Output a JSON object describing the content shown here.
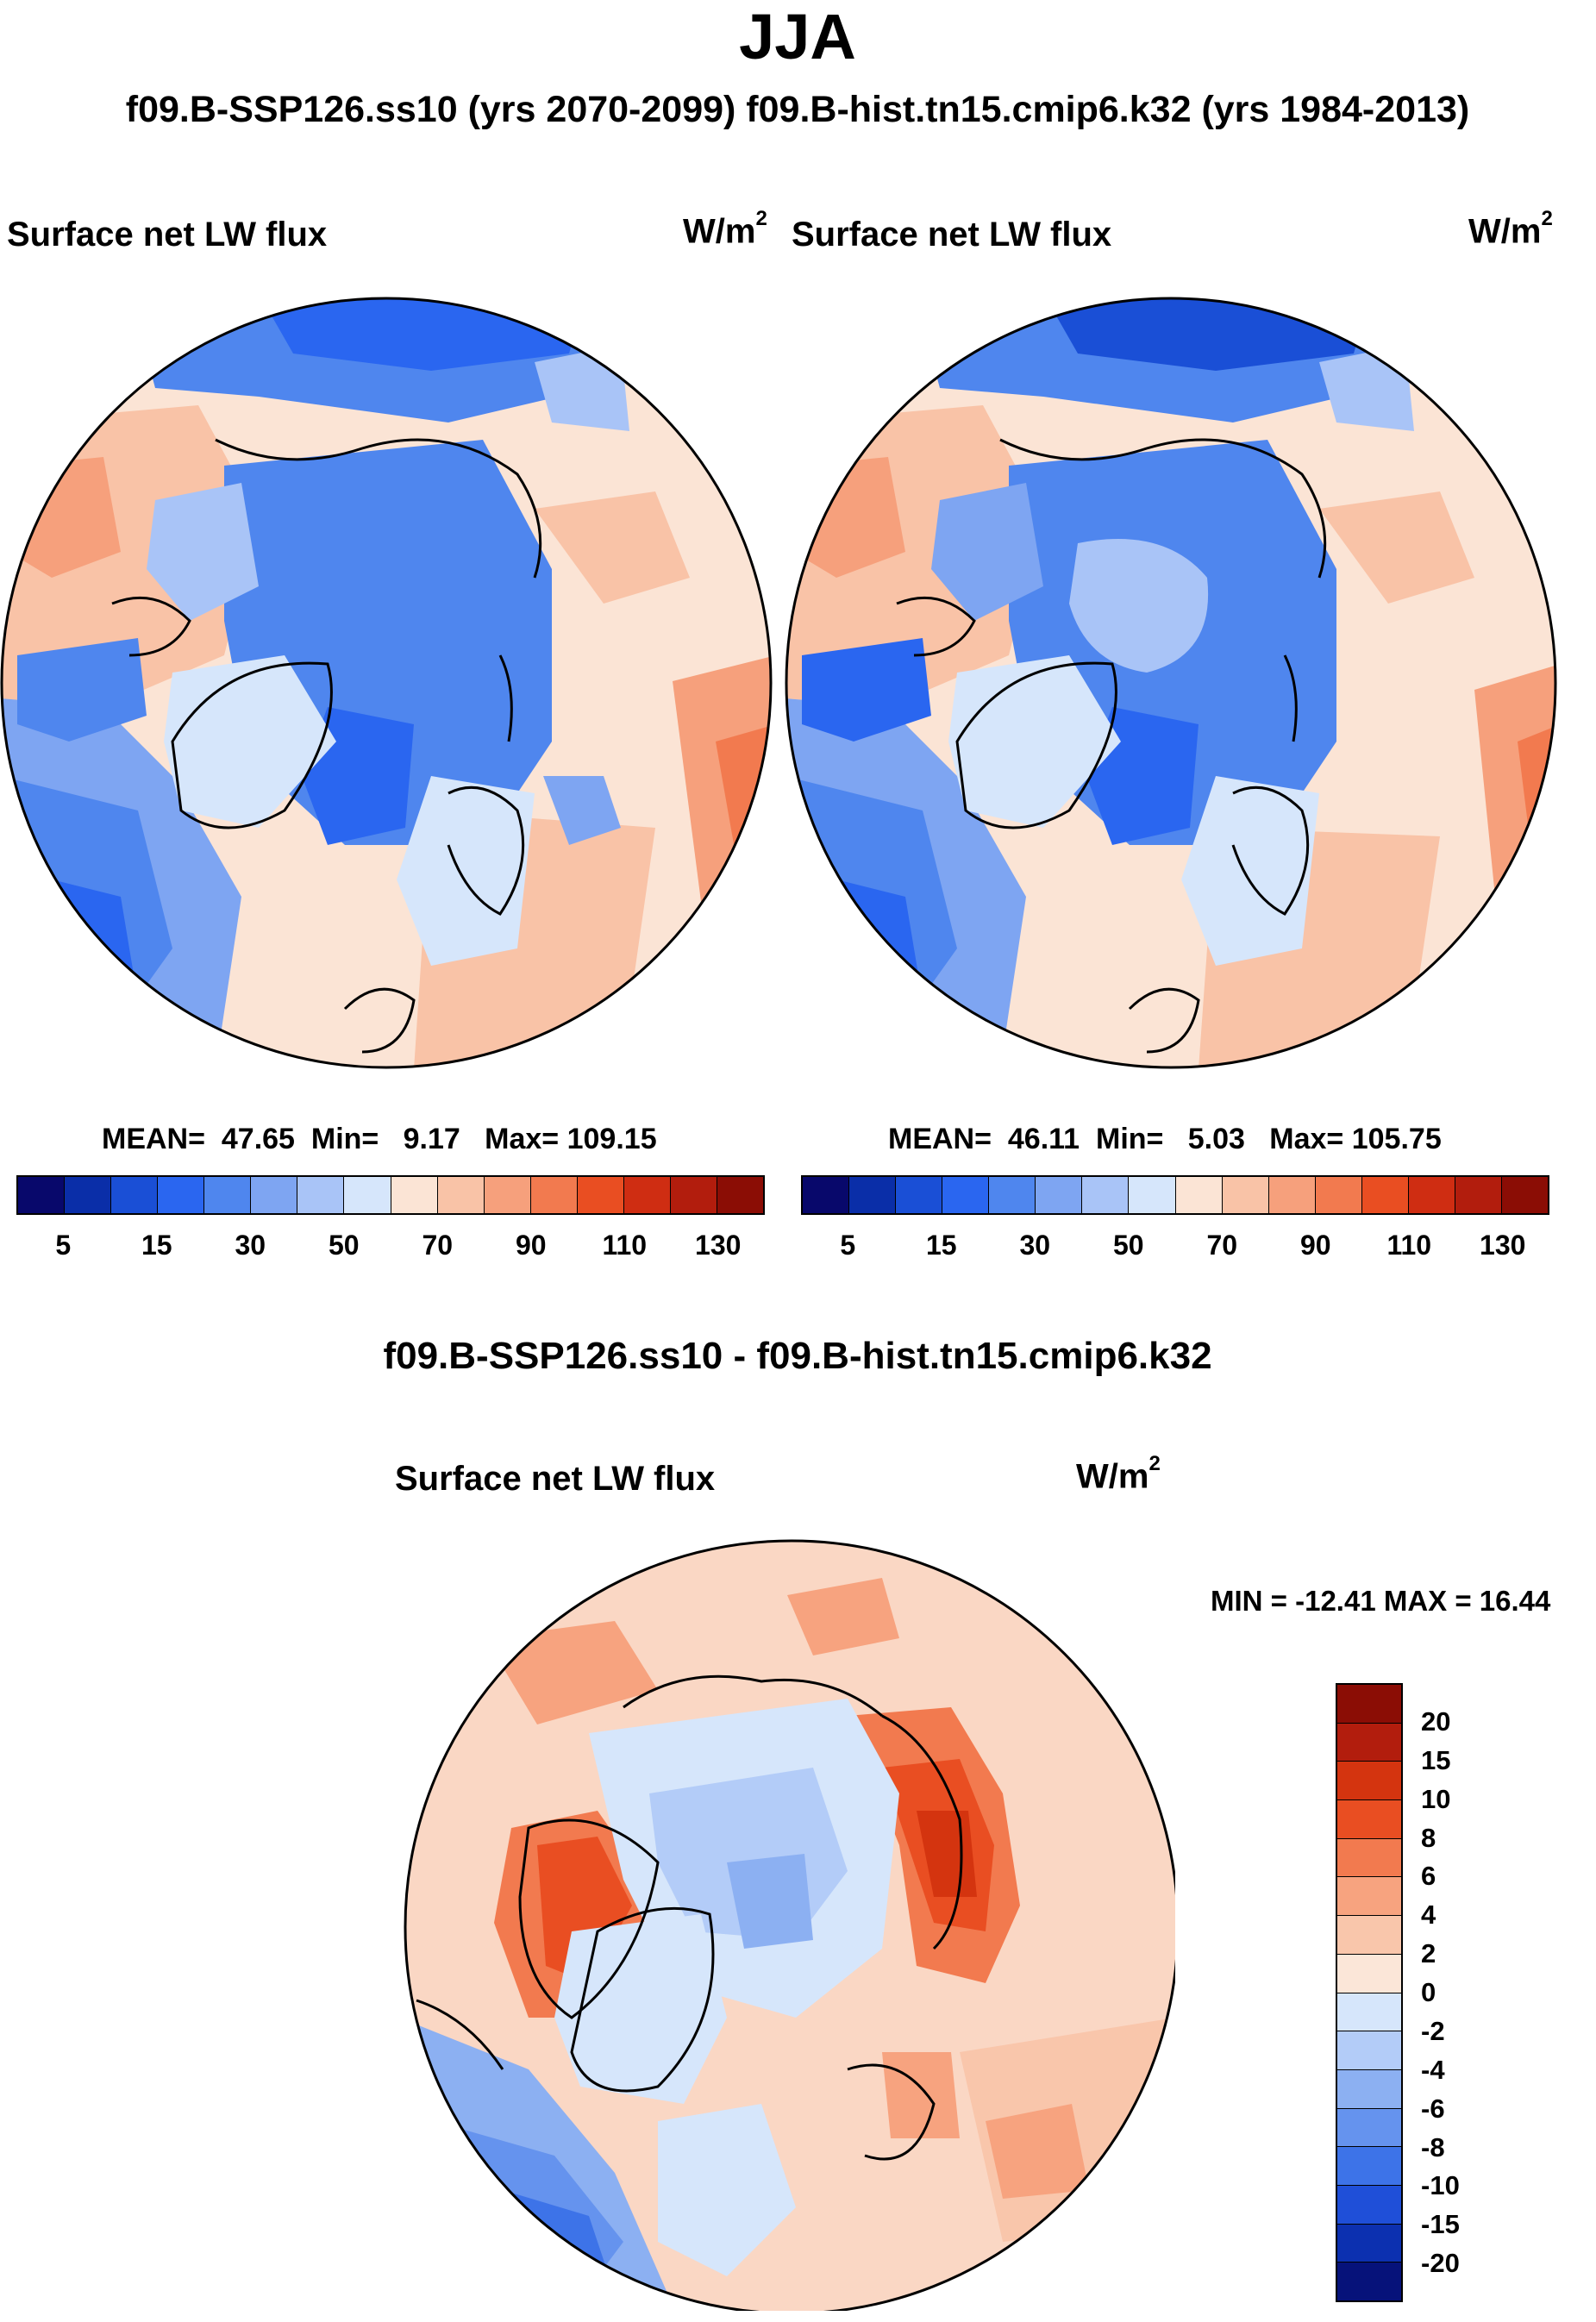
{
  "title": "JJA",
  "subtitle": "f09.B-SSP126.ss10 (yrs 2070-2099)  f09.B-hist.tn15.cmip6.k32 (yrs 1984-2013)",
  "panels": [
    {
      "label": "Surface net LW flux",
      "unit": "W/m",
      "unit_sup": "2",
      "mean_label": "MEAN=",
      "mean": "47.65",
      "min_label": "Min=",
      "min": "9.17",
      "max_label": "Max=",
      "max": "109.15"
    },
    {
      "label": "Surface net LW flux",
      "unit": "W/m",
      "unit_sup": "2",
      "mean_label": "MEAN=",
      "mean": "46.11",
      "min_label": "Min=",
      "min": "5.03",
      "max_label": "Max=",
      "max": "105.75"
    }
  ],
  "colorbar_abs": {
    "colors": [
      "#08086b",
      "#0a2ea8",
      "#1a4fd6",
      "#2a66f0",
      "#4f86ee",
      "#7ea5f2",
      "#a9c4f7",
      "#d6e6fb",
      "#fbe4d5",
      "#f9c3a7",
      "#f6a07c",
      "#f27a4f",
      "#e94e22",
      "#cf2d12",
      "#b21d0d",
      "#8b0d05"
    ],
    "ticks": [
      "5",
      "15",
      "30",
      "50",
      "70",
      "90",
      "110",
      "130"
    ]
  },
  "diff": {
    "title": "f09.B-SSP126.ss10 - f09.B-hist.tn15.cmip6.k32",
    "label": "Surface net LW flux",
    "unit": "W/m",
    "unit_sup": "2",
    "minmax": "MIN = -12.41 MAX =  16.44"
  },
  "colorbar_diff": {
    "colors": [
      "#8b0d05",
      "#b21d0d",
      "#d4340f",
      "#e94e22",
      "#f27a4f",
      "#f7a37f",
      "#f9c6ab",
      "#fbe6d8",
      "#d6e6fb",
      "#b3ccf8",
      "#8cb0f2",
      "#6593ee",
      "#3d73e8",
      "#1f4fd8",
      "#0c30b0",
      "#06127a"
    ],
    "ticks": [
      "20",
      "15",
      "10",
      "8",
      "6",
      "4",
      "2",
      "0",
      "-2",
      "-4",
      "-6",
      "-8",
      "-10",
      "-15",
      "-20"
    ]
  }
}
